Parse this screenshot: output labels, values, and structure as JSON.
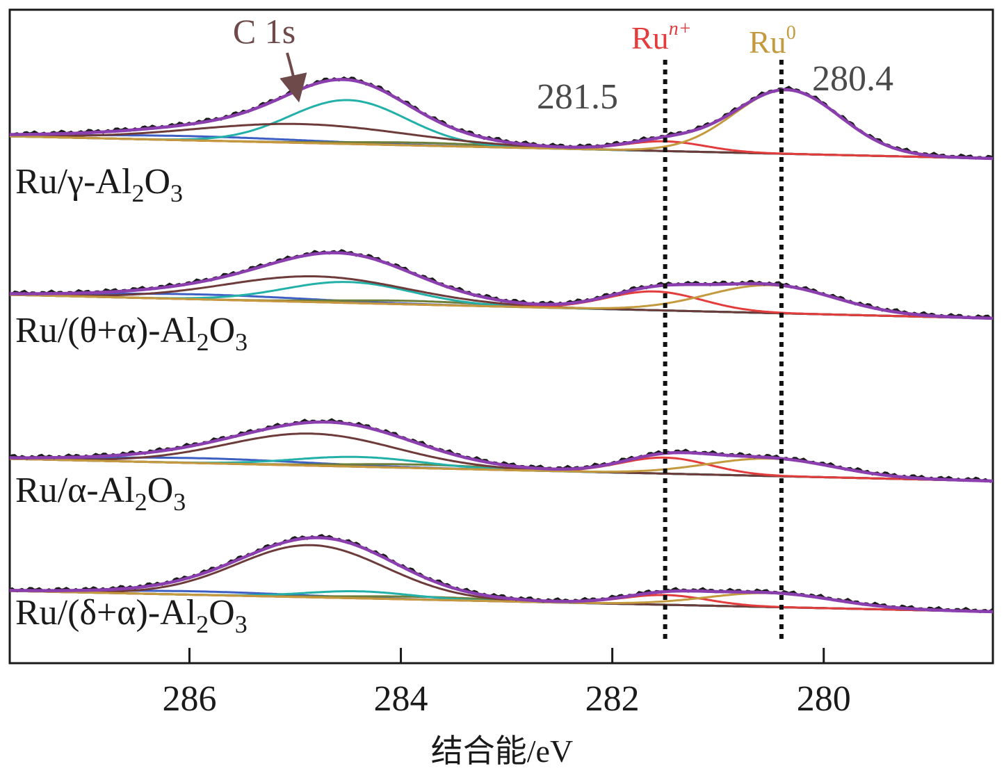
{
  "chart_data": {
    "type": "line",
    "title": "",
    "xlabel": "结合能/eV",
    "ylabel": "",
    "x_reversed": true,
    "xlim": [
      287.7,
      278.4
    ],
    "xticks": [
      286,
      284,
      282,
      280
    ],
    "tick_labels": [
      "286",
      "284",
      "282",
      "280"
    ],
    "colors": {
      "raw": "#1a1a1a",
      "fit": "#8b3fae",
      "c1s_main": "#6e3b3b",
      "c1s_second": "#22b0a8",
      "c_blue": "#3d5fc4",
      "c_green": "#6b7f3a",
      "ru_n": "#e23c3c",
      "ru_0": "#c49a3f",
      "c1s_label": "#6e4a4a",
      "value_label": "#4a4a4a",
      "dotted": "#111111"
    },
    "reference_lines": [
      {
        "x": 281.5,
        "label": "281.5"
      },
      {
        "x": 280.4,
        "label": "280.4"
      }
    ],
    "annotations": {
      "c1s": "C 1s",
      "ru_n_base": "Ru",
      "ru_n_sup": "n+",
      "ru_0_base": "Ru",
      "ru_0_sup": "0"
    },
    "series": [
      {
        "name": "Ru/γ-Al2O3",
        "label_parts": [
          [
            "Ru/γ-Al",
            ""
          ],
          [
            "2",
            "sub"
          ],
          [
            "O",
            ""
          ],
          [
            "3",
            "sub"
          ]
        ],
        "components": {
          "c1s_main": {
            "center": 284.95,
            "sigma": 1.0,
            "height": 27
          },
          "c1s_second": {
            "center": 284.5,
            "sigma": 0.55,
            "height": 63
          },
          "c_blue": {
            "center": 286.0,
            "sigma": 1.1,
            "height": 6
          },
          "c_green": {
            "center": 283.8,
            "sigma": 0.7,
            "height": 4
          },
          "ru_n": {
            "center": 281.5,
            "sigma": 0.38,
            "height": 14
          },
          "ru_0": {
            "center": 280.35,
            "sigma": 0.5,
            "height": 92
          }
        }
      },
      {
        "name": "Ru/(θ+α)-Al2O3",
        "label_parts": [
          [
            "Ru/(θ+α)-Al",
            ""
          ],
          [
            "2",
            "sub"
          ],
          [
            "O",
            ""
          ],
          [
            "3",
            "sub"
          ]
        ],
        "components": {
          "c1s_main": {
            "center": 284.8,
            "sigma": 0.85,
            "height": 37
          },
          "c1s_second": {
            "center": 284.5,
            "sigma": 0.6,
            "height": 30
          },
          "c_blue": {
            "center": 285.9,
            "sigma": 1.0,
            "height": 7
          },
          "c_green": {
            "center": 283.9,
            "sigma": 0.7,
            "height": 5
          },
          "ru_n": {
            "center": 281.6,
            "sigma": 0.45,
            "height": 27
          },
          "ru_0": {
            "center": 280.5,
            "sigma": 0.6,
            "height": 40
          }
        }
      },
      {
        "name": "Ru/α-Al2O3",
        "label_parts": [
          [
            "Ru/α-Al",
            ""
          ],
          [
            "2",
            "sub"
          ],
          [
            "O",
            ""
          ],
          [
            "3",
            "sub"
          ]
        ],
        "components": {
          "c1s_main": {
            "center": 284.85,
            "sigma": 0.8,
            "height": 46
          },
          "c1s_second": {
            "center": 284.4,
            "sigma": 0.6,
            "height": 14
          },
          "c_blue": {
            "center": 285.9,
            "sigma": 1.0,
            "height": 7
          },
          "c_green": {
            "center": 283.8,
            "sigma": 0.7,
            "height": 5
          },
          "ru_n": {
            "center": 281.5,
            "sigma": 0.42,
            "height": 23
          },
          "ru_0": {
            "center": 280.5,
            "sigma": 0.6,
            "height": 25
          }
        }
      },
      {
        "name": "Ru/(δ+α)-Al2O3",
        "label_parts": [
          [
            "Ru/(δ+α)-Al",
            ""
          ],
          [
            "2",
            "sub"
          ],
          [
            "O",
            ""
          ],
          [
            "3",
            "sub"
          ]
        ],
        "components": {
          "c1s_main": {
            "center": 284.85,
            "sigma": 0.7,
            "height": 75
          },
          "c1s_second": {
            "center": 284.4,
            "sigma": 0.5,
            "height": 10
          },
          "c_blue": {
            "center": 285.9,
            "sigma": 0.9,
            "height": 5
          },
          "c_green": {
            "center": 283.8,
            "sigma": 0.7,
            "height": 4
          },
          "ru_n": {
            "center": 281.5,
            "sigma": 0.4,
            "height": 14
          },
          "ru_0": {
            "center": 280.5,
            "sigma": 0.6,
            "height": 20
          }
        }
      }
    ]
  }
}
